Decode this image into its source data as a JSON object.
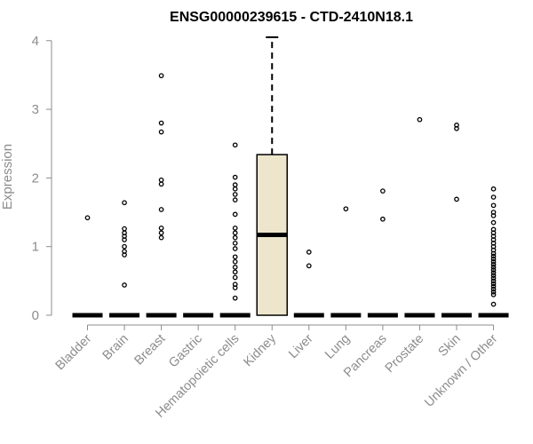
{
  "chart_data": {
    "type": "box",
    "title": "ENSG00000239615 - CTD-2410N18.1",
    "xlabel": "",
    "ylabel": "Expression",
    "ylim": [
      0,
      4.1
    ],
    "yticks": [
      0,
      1,
      2,
      3,
      4
    ],
    "grid": false,
    "colors": {
      "box_fill": "#ede6cc",
      "stroke": "#000000",
      "axis": "#8c8c8c",
      "text": "#8c8c8c"
    },
    "categories": [
      "Bladder",
      "Brain",
      "Breast",
      "Gastric",
      "Hematopoietic cells",
      "Kidney",
      "Liver",
      "Lung",
      "Pancreas",
      "Prostate",
      "Skin",
      "Unknown / Other"
    ],
    "boxes": [
      {
        "category": "Bladder",
        "q1": 0,
        "median": 0,
        "q3": 0,
        "whisker_low": 0,
        "whisker_high": 0,
        "outliers": [
          1.42
        ]
      },
      {
        "category": "Brain",
        "q1": 0,
        "median": 0,
        "q3": 0,
        "whisker_low": 0,
        "whisker_high": 0,
        "outliers": [
          0.44,
          0.88,
          0.93,
          1.0,
          1.1,
          1.15,
          1.2,
          1.26,
          1.64
        ]
      },
      {
        "category": "Breast",
        "q1": 0,
        "median": 0,
        "q3": 0,
        "whisker_low": 0,
        "whisker_high": 0,
        "outliers": [
          1.13,
          1.2,
          1.27,
          1.54,
          1.91,
          1.97,
          2.67,
          2.8,
          3.49
        ]
      },
      {
        "category": "Gastric",
        "q1": 0,
        "median": 0,
        "q3": 0,
        "whisker_low": 0,
        "whisker_high": 0,
        "outliers": []
      },
      {
        "category": "Hematopoietic cells",
        "q1": 0,
        "median": 0,
        "q3": 0,
        "whisker_low": 0,
        "whisker_high": 0,
        "outliers": [
          0.25,
          0.4,
          0.45,
          0.55,
          0.63,
          0.7,
          0.78,
          0.85,
          0.97,
          1.05,
          1.13,
          1.2,
          1.27,
          1.47,
          1.68,
          1.76,
          1.84,
          1.9,
          2.01,
          2.48
        ]
      },
      {
        "category": "Kidney",
        "q1": 0,
        "median": 1.17,
        "q3": 2.34,
        "whisker_low": 0,
        "whisker_high": 4.05,
        "outliers": []
      },
      {
        "category": "Liver",
        "q1": 0,
        "median": 0,
        "q3": 0,
        "whisker_low": 0,
        "whisker_high": 0,
        "outliers": [
          0.72,
          0.92
        ]
      },
      {
        "category": "Lung",
        "q1": 0,
        "median": 0,
        "q3": 0,
        "whisker_low": 0,
        "whisker_high": 0,
        "outliers": [
          1.55
        ]
      },
      {
        "category": "Pancreas",
        "q1": 0,
        "median": 0,
        "q3": 0,
        "whisker_low": 0,
        "whisker_high": 0,
        "outliers": [
          1.4,
          1.81
        ]
      },
      {
        "category": "Prostate",
        "q1": 0,
        "median": 0,
        "q3": 0,
        "whisker_low": 0,
        "whisker_high": 0,
        "outliers": [
          2.85
        ]
      },
      {
        "category": "Skin",
        "q1": 0,
        "median": 0,
        "q3": 0,
        "whisker_low": 0,
        "whisker_high": 0,
        "outliers": [
          1.69,
          2.72,
          2.77
        ]
      },
      {
        "category": "Unknown / Other",
        "q1": 0,
        "median": 0,
        "q3": 0,
        "whisker_low": 0,
        "whisker_high": 0,
        "outliers": [
          0.16,
          0.3,
          0.34,
          0.38,
          0.42,
          0.46,
          0.5,
          0.54,
          0.58,
          0.62,
          0.66,
          0.7,
          0.74,
          0.78,
          0.82,
          0.86,
          0.9,
          0.95,
          1.0,
          1.05,
          1.1,
          1.15,
          1.2,
          1.25,
          1.35,
          1.45,
          1.5,
          1.6,
          1.72,
          1.84
        ]
      }
    ]
  }
}
